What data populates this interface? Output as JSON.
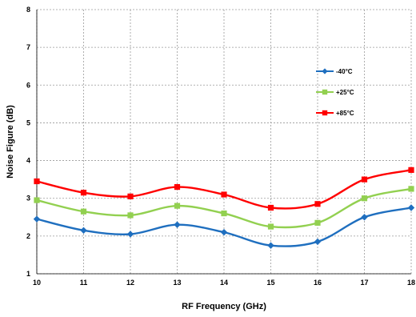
{
  "chart_data": {
    "type": "line",
    "xlabel": "RF Frequency (GHz)",
    "ylabel": "Noise Figure (dB)",
    "xlim": [
      10,
      18
    ],
    "ylim": [
      1,
      8
    ],
    "x_ticks": [
      "10",
      "11",
      "12",
      "13",
      "14",
      "15",
      "16",
      "17",
      "18"
    ],
    "y_ticks": [
      "1",
      "2",
      "3",
      "4",
      "5",
      "6",
      "7",
      "8"
    ],
    "grid": true,
    "legend_position": "right",
    "x": [
      10,
      11,
      12,
      13,
      14,
      15,
      16,
      17,
      18
    ],
    "series": [
      {
        "name": "-40°C",
        "color": "#1f6fbf",
        "marker": "diamond",
        "values": [
          2.45,
          2.15,
          2.05,
          2.3,
          2.1,
          1.75,
          1.85,
          2.5,
          2.75
        ]
      },
      {
        "name": "+25°C",
        "color": "#92d050",
        "marker": "square",
        "values": [
          2.95,
          2.65,
          2.55,
          2.8,
          2.6,
          2.25,
          2.35,
          3.0,
          3.25
        ]
      },
      {
        "name": "+85°C",
        "color": "#ff0000",
        "marker": "square",
        "values": [
          3.45,
          3.15,
          3.05,
          3.3,
          3.1,
          2.75,
          2.85,
          3.5,
          3.75
        ]
      }
    ]
  }
}
